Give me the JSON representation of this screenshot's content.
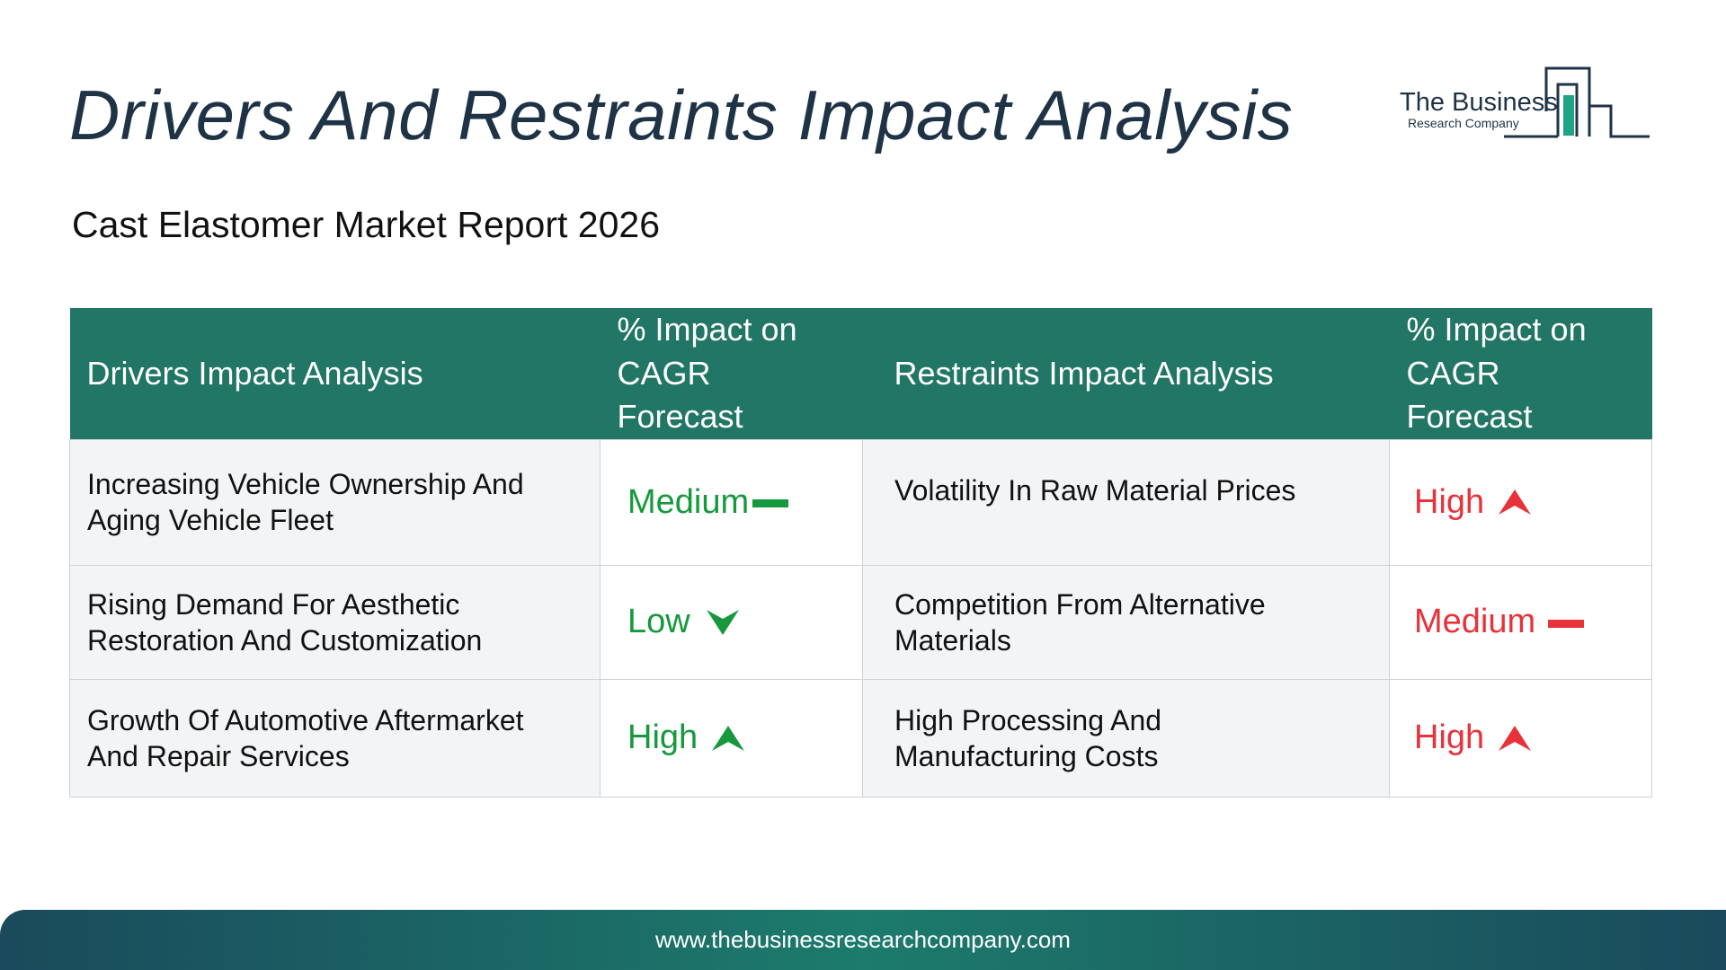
{
  "header": {
    "title": "Drivers And Restraints Impact Analysis",
    "subtitle": "Cast Elastomer Market Report 2026"
  },
  "logo": {
    "line1": "The Business",
    "line2": "Research Company",
    "color": "#1f3346",
    "accent": "#1fa487"
  },
  "table": {
    "headers": [
      "Drivers Impact Analysis",
      "% Impact on CAGR Forecast",
      "Restraints Impact Analysis",
      "% Impact on CAGR Forecast"
    ],
    "rows": [
      {
        "driver": "Increasing Vehicle Ownership And Aging Vehicle Fleet",
        "driver_impact": "Medium",
        "driver_indicator": "dash-icon",
        "restraint": "Volatility In Raw Material Prices",
        "restraint_impact": "High",
        "restraint_indicator": "up-arrow-icon"
      },
      {
        "driver": "Rising Demand For Aesthetic Restoration And Customization",
        "driver_impact": "Low",
        "driver_indicator": "down-arrow-icon",
        "restraint": "Competition From Alternative Materials",
        "restraint_impact": "Medium",
        "restraint_indicator": "dash-icon"
      },
      {
        "driver": "Growth Of Automotive Aftermarket And Repair Services",
        "driver_impact": "High",
        "driver_indicator": "up-arrow-icon",
        "restraint": "High Processing And Manufacturing Costs",
        "restraint_impact": "High",
        "restraint_indicator": "up-arrow-icon"
      }
    ]
  },
  "colors": {
    "header_bg": "#227665",
    "driver_impact": "#15993c",
    "restraint_impact": "#e8323a",
    "title": "#1f3346"
  },
  "footer": {
    "url": "www.thebusinessresearchcompany.com"
  }
}
